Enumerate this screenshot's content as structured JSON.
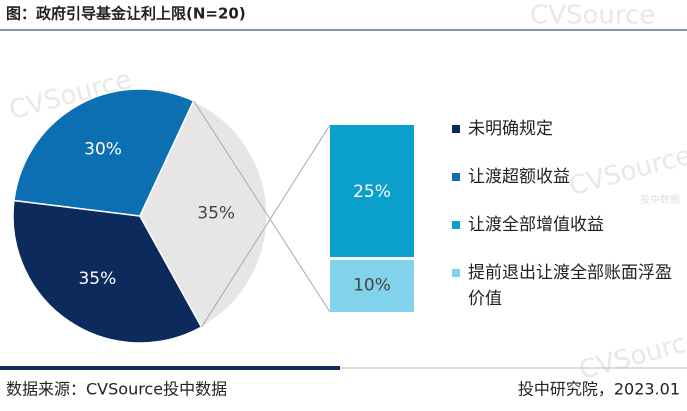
{
  "chart_data": {
    "type": "pie-of-bar",
    "title": "图：政府引导基金让利上限(N=20)",
    "pie": {
      "categories": [
        "未明确规定",
        "让渡超额收益",
        null
      ],
      "values": [
        35,
        30,
        35
      ],
      "value_labels": [
        "35%",
        "30%",
        "35%"
      ],
      "colors": [
        "#0d2a5c",
        "#0b6fb2",
        "#e6e6e6"
      ]
    },
    "bar": {
      "categories": [
        "让渡全部增值收益",
        "提前退出让渡全部账面浮盈价值"
      ],
      "values": [
        25,
        10
      ],
      "value_labels": [
        "25%",
        "10%"
      ],
      "colors": [
        "#0aa0cb",
        "#80d3eb"
      ]
    },
    "source": "数据来源：CVSource投中数据",
    "date": "投中研究院，2023.01",
    "watermark": "CVSource",
    "watermark_sub": "投中数据"
  }
}
